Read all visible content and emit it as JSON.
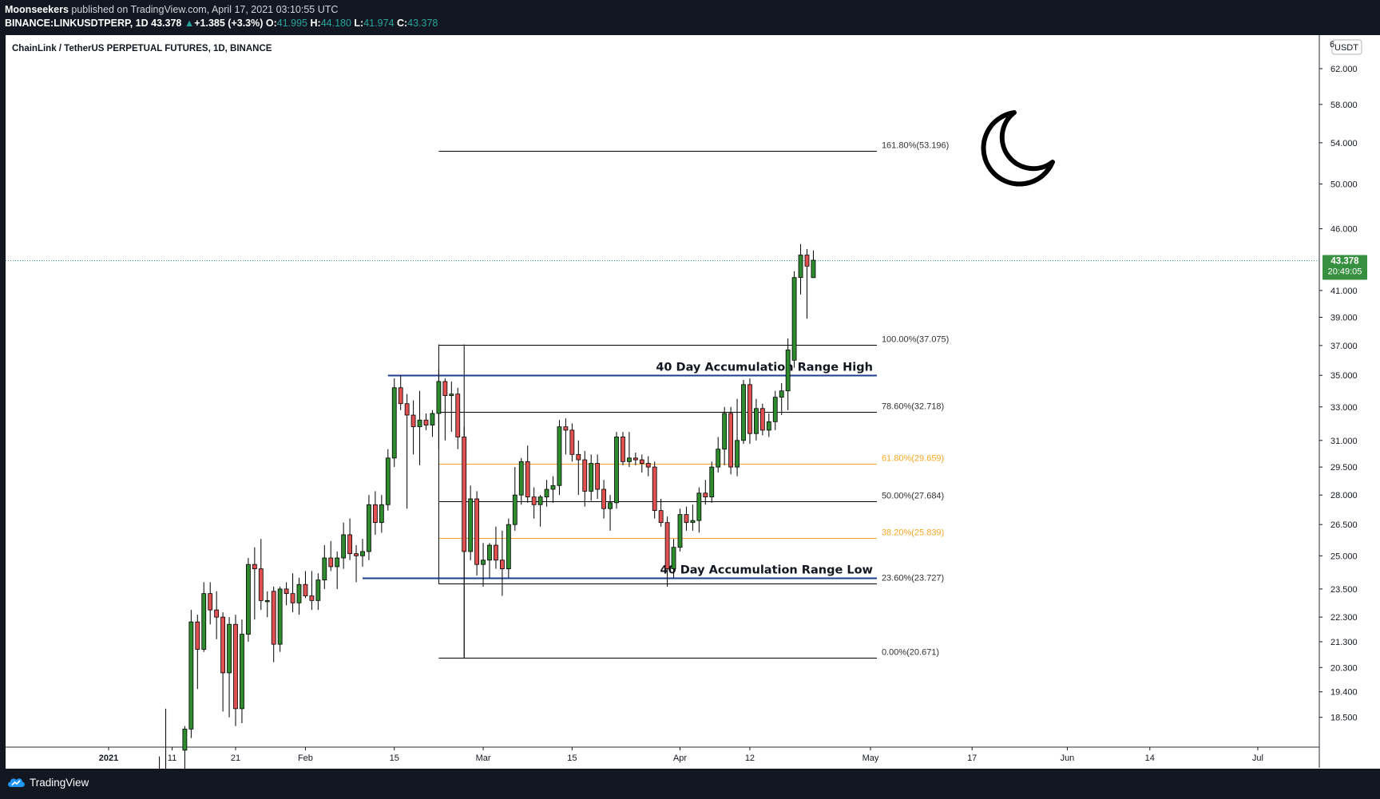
{
  "header": {
    "publisher": "Moonseekers",
    "published_on": "published on TradingView.com, April 17, 2021 03:10:55 UTC",
    "symbol": "BINANCE:LINKUSDTPERP, 1D",
    "last": "43.378",
    "change_arrow": "▲",
    "change": "+1.385 (+3.3%)",
    "o_label": "O:",
    "o": "41.995",
    "h_label": "H:",
    "h": "44.180",
    "l_label": "L:",
    "l": "41.974",
    "c_label": "C:",
    "c": "43.378"
  },
  "footer": {
    "brand": "TradingView"
  },
  "colors": {
    "up": "#26a69a",
    "candle_up": "#2e8b2e",
    "candle_down": "#e05050",
    "fib_orange": "#f5a623",
    "range_blue": "#1e3f8f",
    "price_label_bg": "#37903f"
  },
  "chart_data": {
    "type": "candlestick",
    "title": "ChainLink / TetherUS PERPETUAL FUTURES, 1D, BINANCE",
    "currency": "USDT",
    "scale": "log",
    "ylim": [
      17.5,
      66.0
    ],
    "y_ticks": [
      62.0,
      58.0,
      54.0,
      50.0,
      46.0,
      41.0,
      39.0,
      37.0,
      35.0,
      33.0,
      31.0,
      29.5,
      28.0,
      26.5,
      25.0,
      23.5,
      22.3,
      21.3,
      20.3,
      19.4,
      18.5
    ],
    "y_tick_labels": [
      "62.000",
      "58.000",
      "54.000",
      "50.000",
      "46.000",
      "41.000",
      "39.000",
      "37.000",
      "35.000",
      "33.000",
      "31.000",
      "29.500",
      "28.000",
      "26.500",
      "25.000",
      "23.500",
      "22.300",
      "21.300",
      "20.300",
      "19.400",
      "18.500"
    ],
    "y_top_partial_label": "6",
    "x_start": "2020-12-23",
    "x_end": "2021-07-10",
    "x_ticks": [
      {
        "date": "2021-01-01",
        "label": "2021",
        "bold": true
      },
      {
        "date": "2021-01-11",
        "label": "11"
      },
      {
        "date": "2021-01-21",
        "label": "21"
      },
      {
        "date": "2021-02-01",
        "label": "Feb"
      },
      {
        "date": "2021-02-15",
        "label": "15"
      },
      {
        "date": "2021-03-01",
        "label": "Mar"
      },
      {
        "date": "2021-03-15",
        "label": "15"
      },
      {
        "date": "2021-04-01",
        "label": "Apr"
      },
      {
        "date": "2021-04-12",
        "label": "12"
      },
      {
        "date": "2021-05-01",
        "label": "May"
      },
      {
        "date": "2021-05-17",
        "label": "17"
      },
      {
        "date": "2021-06-01",
        "label": "Jun"
      },
      {
        "date": "2021-06-14",
        "label": "14"
      },
      {
        "date": "2021-07-01",
        "label": "Jul"
      }
    ],
    "last_price": {
      "value": 43.378,
      "label": "43.378",
      "countdown": "20:49:05"
    },
    "candles": [
      {
        "date": "2021-01-09",
        "o": 16.0,
        "h": 17.2,
        "l": 15.8,
        "c": 16.4
      },
      {
        "date": "2021-01-10",
        "o": 16.4,
        "h": 18.8,
        "l": 16.1,
        "c": 16.8
      },
      {
        "date": "2021-01-13",
        "o": 17.4,
        "h": 18.2,
        "l": 16.6,
        "c": 18.1
      },
      {
        "date": "2021-01-14",
        "o": 18.1,
        "h": 22.6,
        "l": 17.8,
        "c": 22.1
      },
      {
        "date": "2021-01-15",
        "o": 22.1,
        "h": 22.4,
        "l": 19.5,
        "c": 21.0
      },
      {
        "date": "2021-01-16",
        "o": 21.0,
        "h": 23.8,
        "l": 20.9,
        "c": 23.3
      },
      {
        "date": "2021-01-17",
        "o": 23.3,
        "h": 23.8,
        "l": 22.0,
        "c": 22.6
      },
      {
        "date": "2021-01-18",
        "o": 22.6,
        "h": 23.4,
        "l": 21.4,
        "c": 22.3
      },
      {
        "date": "2021-01-19",
        "o": 22.3,
        "h": 22.5,
        "l": 18.7,
        "c": 20.1
      },
      {
        "date": "2021-01-20",
        "o": 20.1,
        "h": 22.3,
        "l": 18.5,
        "c": 22.0
      },
      {
        "date": "2021-01-21",
        "o": 22.0,
        "h": 22.4,
        "l": 18.2,
        "c": 18.8
      },
      {
        "date": "2021-01-22",
        "o": 18.8,
        "h": 22.2,
        "l": 18.3,
        "c": 21.6
      },
      {
        "date": "2021-01-23",
        "o": 21.6,
        "h": 24.9,
        "l": 21.3,
        "c": 24.6
      },
      {
        "date": "2021-01-24",
        "o": 24.6,
        "h": 25.4,
        "l": 22.2,
        "c": 24.4
      },
      {
        "date": "2021-01-25",
        "o": 24.4,
        "h": 25.8,
        "l": 22.6,
        "c": 23.0
      },
      {
        "date": "2021-01-26",
        "o": 23.0,
        "h": 23.4,
        "l": 22.3,
        "c": 23.0
      },
      {
        "date": "2021-01-27",
        "o": 23.4,
        "h": 23.6,
        "l": 20.5,
        "c": 21.2
      },
      {
        "date": "2021-01-28",
        "o": 21.2,
        "h": 23.6,
        "l": 20.9,
        "c": 23.5
      },
      {
        "date": "2021-01-29",
        "o": 23.5,
        "h": 23.8,
        "l": 22.8,
        "c": 23.3
      },
      {
        "date": "2021-01-30",
        "o": 23.3,
        "h": 24.2,
        "l": 22.5,
        "c": 22.9
      },
      {
        "date": "2021-01-31",
        "o": 22.9,
        "h": 24.0,
        "l": 22.4,
        "c": 23.7
      },
      {
        "date": "2021-02-01",
        "o": 23.7,
        "h": 24.3,
        "l": 23.1,
        "c": 23.2
      },
      {
        "date": "2021-02-02",
        "o": 23.2,
        "h": 24.3,
        "l": 22.6,
        "c": 23.0
      },
      {
        "date": "2021-02-03",
        "o": 23.0,
        "h": 24.2,
        "l": 22.6,
        "c": 23.9
      },
      {
        "date": "2021-02-04",
        "o": 23.9,
        "h": 25.5,
        "l": 23.5,
        "c": 24.9
      },
      {
        "date": "2021-02-05",
        "o": 24.9,
        "h": 25.7,
        "l": 24.3,
        "c": 24.5
      },
      {
        "date": "2021-02-06",
        "o": 24.5,
        "h": 25.2,
        "l": 23.5,
        "c": 24.9
      },
      {
        "date": "2021-02-07",
        "o": 24.9,
        "h": 26.6,
        "l": 24.4,
        "c": 26.0
      },
      {
        "date": "2021-02-08",
        "o": 26.0,
        "h": 26.8,
        "l": 24.8,
        "c": 25.1
      },
      {
        "date": "2021-02-09",
        "o": 25.1,
        "h": 25.5,
        "l": 23.8,
        "c": 25.0
      },
      {
        "date": "2021-02-10",
        "o": 25.0,
        "h": 25.8,
        "l": 24.5,
        "c": 25.2
      },
      {
        "date": "2021-02-11",
        "o": 25.2,
        "h": 28.0,
        "l": 24.8,
        "c": 27.5
      },
      {
        "date": "2021-02-12",
        "o": 27.5,
        "h": 28.2,
        "l": 26.0,
        "c": 26.6
      },
      {
        "date": "2021-02-13",
        "o": 26.6,
        "h": 28.0,
        "l": 26.1,
        "c": 27.5
      },
      {
        "date": "2021-02-14",
        "o": 27.5,
        "h": 30.5,
        "l": 27.2,
        "c": 30.0
      },
      {
        "date": "2021-02-15",
        "o": 30.0,
        "h": 34.8,
        "l": 29.5,
        "c": 34.2
      },
      {
        "date": "2021-02-16",
        "o": 34.2,
        "h": 35.0,
        "l": 32.8,
        "c": 33.2
      },
      {
        "date": "2021-02-17",
        "o": 33.2,
        "h": 33.8,
        "l": 27.3,
        "c": 32.5
      },
      {
        "date": "2021-02-18",
        "o": 32.5,
        "h": 33.4,
        "l": 30.2,
        "c": 31.8
      },
      {
        "date": "2021-02-19",
        "o": 31.8,
        "h": 34.0,
        "l": 29.6,
        "c": 32.2
      },
      {
        "date": "2021-02-20",
        "o": 32.2,
        "h": 32.6,
        "l": 31.6,
        "c": 31.9
      },
      {
        "date": "2021-02-21",
        "o": 31.9,
        "h": 32.8,
        "l": 31.2,
        "c": 32.6
      },
      {
        "date": "2021-02-22",
        "o": 32.6,
        "h": 35.4,
        "l": 30.5,
        "c": 34.6
      },
      {
        "date": "2021-02-23",
        "o": 34.6,
        "h": 34.8,
        "l": 31.0,
        "c": 33.7
      },
      {
        "date": "2021-02-24",
        "o": 33.7,
        "h": 34.6,
        "l": 31.5,
        "c": 33.8
      },
      {
        "date": "2021-02-25",
        "o": 33.8,
        "h": 34.2,
        "l": 30.5,
        "c": 31.2
      },
      {
        "date": "2021-02-26",
        "o": 31.2,
        "h": 31.8,
        "l": 20.7,
        "c": 25.2
      },
      {
        "date": "2021-02-27",
        "o": 25.2,
        "h": 28.5,
        "l": 24.8,
        "c": 27.8
      },
      {
        "date": "2021-02-28",
        "o": 27.8,
        "h": 28.2,
        "l": 24.1,
        "c": 24.6
      },
      {
        "date": "2021-03-01",
        "o": 24.6,
        "h": 25.6,
        "l": 23.6,
        "c": 24.8
      },
      {
        "date": "2021-03-02",
        "o": 24.8,
        "h": 25.6,
        "l": 24.0,
        "c": 25.5
      },
      {
        "date": "2021-03-03",
        "o": 25.5,
        "h": 26.4,
        "l": 24.4,
        "c": 24.8
      },
      {
        "date": "2021-03-04",
        "o": 24.8,
        "h": 26.2,
        "l": 23.2,
        "c": 24.4
      },
      {
        "date": "2021-03-05",
        "o": 24.4,
        "h": 26.8,
        "l": 24.0,
        "c": 26.5
      },
      {
        "date": "2021-03-06",
        "o": 26.5,
        "h": 29.5,
        "l": 26.2,
        "c": 28.0
      },
      {
        "date": "2021-03-07",
        "o": 28.0,
        "h": 30.0,
        "l": 27.5,
        "c": 29.8
      },
      {
        "date": "2021-03-08",
        "o": 29.8,
        "h": 30.7,
        "l": 27.6,
        "c": 27.9
      },
      {
        "date": "2021-03-09",
        "o": 27.9,
        "h": 28.4,
        "l": 26.8,
        "c": 27.5
      },
      {
        "date": "2021-03-10",
        "o": 27.5,
        "h": 28.0,
        "l": 26.4,
        "c": 27.9
      },
      {
        "date": "2021-03-11",
        "o": 27.9,
        "h": 28.8,
        "l": 27.4,
        "c": 28.3
      },
      {
        "date": "2021-03-12",
        "o": 28.3,
        "h": 29.0,
        "l": 27.6,
        "c": 28.5
      },
      {
        "date": "2021-03-13",
        "o": 28.5,
        "h": 32.2,
        "l": 28.0,
        "c": 31.8
      },
      {
        "date": "2021-03-14",
        "o": 31.8,
        "h": 32.3,
        "l": 30.2,
        "c": 31.6
      },
      {
        "date": "2021-03-15",
        "o": 31.6,
        "h": 32.0,
        "l": 29.8,
        "c": 30.2
      },
      {
        "date": "2021-03-16",
        "o": 30.2,
        "h": 31.0,
        "l": 28.0,
        "c": 29.9
      },
      {
        "date": "2021-03-17",
        "o": 29.9,
        "h": 30.4,
        "l": 27.4,
        "c": 28.2
      },
      {
        "date": "2021-03-18",
        "o": 28.2,
        "h": 30.2,
        "l": 27.7,
        "c": 29.7
      },
      {
        "date": "2021-03-19",
        "o": 29.7,
        "h": 30.2,
        "l": 27.8,
        "c": 28.3
      },
      {
        "date": "2021-03-20",
        "o": 28.3,
        "h": 28.8,
        "l": 26.8,
        "c": 27.3
      },
      {
        "date": "2021-03-21",
        "o": 27.3,
        "h": 28.0,
        "l": 26.2,
        "c": 27.6
      },
      {
        "date": "2021-03-22",
        "o": 27.6,
        "h": 31.5,
        "l": 27.3,
        "c": 31.2
      },
      {
        "date": "2021-03-23",
        "o": 31.2,
        "h": 31.5,
        "l": 29.6,
        "c": 29.8
      },
      {
        "date": "2021-03-24",
        "o": 29.8,
        "h": 31.5,
        "l": 29.5,
        "c": 30.0
      },
      {
        "date": "2021-03-25",
        "o": 30.0,
        "h": 30.3,
        "l": 29.6,
        "c": 29.9
      },
      {
        "date": "2021-03-26",
        "o": 29.9,
        "h": 30.2,
        "l": 29.2,
        "c": 29.7
      },
      {
        "date": "2021-03-27",
        "o": 29.7,
        "h": 30.1,
        "l": 29.0,
        "c": 29.5
      },
      {
        "date": "2021-03-28",
        "o": 29.5,
        "h": 29.8,
        "l": 26.8,
        "c": 27.2
      },
      {
        "date": "2021-03-29",
        "o": 27.2,
        "h": 27.8,
        "l": 26.4,
        "c": 26.6
      },
      {
        "date": "2021-03-30",
        "o": 26.6,
        "h": 26.9,
        "l": 23.6,
        "c": 24.4
      },
      {
        "date": "2021-03-31",
        "o": 24.4,
        "h": 25.8,
        "l": 24.0,
        "c": 25.4
      },
      {
        "date": "2021-04-01",
        "o": 25.4,
        "h": 27.3,
        "l": 25.2,
        "c": 27.0
      },
      {
        "date": "2021-04-02",
        "o": 27.0,
        "h": 27.4,
        "l": 26.2,
        "c": 26.6
      },
      {
        "date": "2021-04-03",
        "o": 26.6,
        "h": 27.5,
        "l": 26.2,
        "c": 26.7
      },
      {
        "date": "2021-04-04",
        "o": 26.7,
        "h": 28.4,
        "l": 26.1,
        "c": 28.1
      },
      {
        "date": "2021-04-05",
        "o": 28.1,
        "h": 28.8,
        "l": 27.5,
        "c": 27.9
      },
      {
        "date": "2021-04-06",
        "o": 27.9,
        "h": 29.8,
        "l": 27.6,
        "c": 29.5
      },
      {
        "date": "2021-04-07",
        "o": 29.5,
        "h": 31.2,
        "l": 29.2,
        "c": 30.5
      },
      {
        "date": "2021-04-08",
        "o": 30.5,
        "h": 33.0,
        "l": 29.6,
        "c": 32.6
      },
      {
        "date": "2021-04-09",
        "o": 32.6,
        "h": 33.0,
        "l": 29.1,
        "c": 29.5
      },
      {
        "date": "2021-04-10",
        "o": 29.5,
        "h": 33.5,
        "l": 29.0,
        "c": 31.0
      },
      {
        "date": "2021-04-11",
        "o": 31.0,
        "h": 34.7,
        "l": 30.8,
        "c": 34.4
      },
      {
        "date": "2021-04-12",
        "o": 34.4,
        "h": 34.8,
        "l": 30.8,
        "c": 31.4
      },
      {
        "date": "2021-04-13",
        "o": 31.4,
        "h": 33.5,
        "l": 31.0,
        "c": 32.9
      },
      {
        "date": "2021-04-14",
        "o": 32.9,
        "h": 33.2,
        "l": 31.3,
        "c": 31.6
      },
      {
        "date": "2021-04-15",
        "o": 31.6,
        "h": 32.6,
        "l": 31.2,
        "c": 32.1
      },
      {
        "date": "2021-04-16",
        "o": 32.1,
        "h": 34.0,
        "l": 31.6,
        "c": 33.6
      },
      {
        "date": "2021-04-17",
        "o": 33.6,
        "h": 34.5,
        "l": 32.5,
        "c": 34.0
      },
      {
        "date": "2021-04-18",
        "o": 34.0,
        "h": 37.5,
        "l": 32.8,
        "c": 36.7
      },
      {
        "date": "2021-04-19",
        "o": 36.0,
        "h": 42.5,
        "l": 35.5,
        "c": 42.0
      },
      {
        "date": "2021-04-20",
        "o": 42.0,
        "h": 44.7,
        "l": 40.7,
        "c": 43.8
      },
      {
        "date": "2021-04-21",
        "o": 43.8,
        "h": 44.3,
        "l": 38.9,
        "c": 42.9
      },
      {
        "date": "2021-04-22",
        "o": 41.995,
        "h": 44.18,
        "l": 41.974,
        "c": 43.378
      }
    ],
    "fib_levels": [
      {
        "value": 53.196,
        "label": "161.80%(53.196)",
        "color": "#000000"
      },
      {
        "value": 37.075,
        "label": "100.00%(37.075)",
        "color": "#000000"
      },
      {
        "value": 32.718,
        "label": "78.60%(32.718)",
        "color": "#000000"
      },
      {
        "value": 29.659,
        "label": "61.80%(29.659)",
        "color": "#f5a623"
      },
      {
        "value": 27.684,
        "label": "50.00%(27.684)",
        "color": "#000000"
      },
      {
        "value": 25.839,
        "label": "38.20%(25.839)",
        "color": "#f5a623"
      },
      {
        "value": 23.727,
        "label": "23.60%(23.727)",
        "color": "#000000"
      },
      {
        "value": 20.671,
        "label": "0.00%(20.671)",
        "color": "#000000"
      }
    ],
    "fib_start": "2021-02-22",
    "fib_end": "2021-05-02",
    "fib_anchor_high": 37.075,
    "fib_anchor_low": 20.671,
    "fib_anchor_high_date": "2021-02-22",
    "fib_anchor_low_date": "2021-02-26",
    "range_lines": [
      {
        "value": 35.0,
        "label": "40 Day Accumulation Range High",
        "start": "2021-02-14",
        "end": "2021-05-02"
      },
      {
        "value": 24.0,
        "label": "40 Day Accumulation Range Low",
        "start": "2021-02-10",
        "end": "2021-05-02"
      }
    ]
  }
}
